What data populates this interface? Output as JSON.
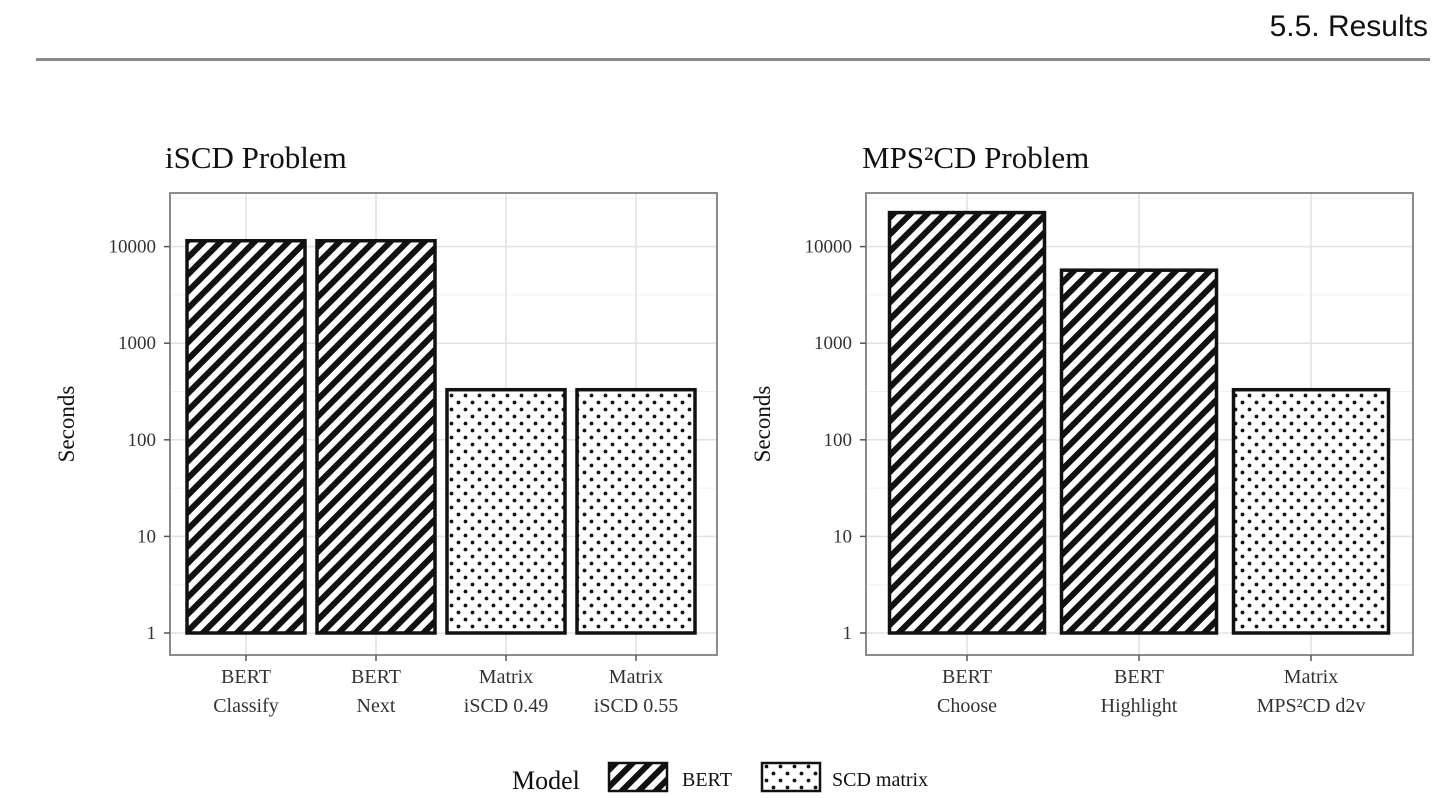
{
  "header": {
    "text": "5.5.  Results"
  },
  "chart_data": [
    {
      "type": "bar",
      "title": "iSCD Problem",
      "ylabel": "Seconds",
      "yscale": "log",
      "ylim": [
        1,
        20000
      ],
      "yticks": [
        1,
        10,
        100,
        1000,
        10000
      ],
      "ytick_labels": [
        "1",
        "10",
        "100",
        "1000",
        "10000"
      ],
      "grid": true,
      "categories": [
        {
          "line1": "BERT",
          "line2": "Classify"
        },
        {
          "line1": "BERT",
          "line2": "Next"
        },
        {
          "line1": "Matrix",
          "line2": "iSCD 0.49"
        },
        {
          "line1": "Matrix",
          "line2": "iSCD 0.55"
        }
      ],
      "values": [
        11500,
        11500,
        330,
        330
      ],
      "model": [
        "BERT",
        "BERT",
        "SCD matrix",
        "SCD matrix"
      ]
    },
    {
      "type": "bar",
      "title": "MPS²CD Problem",
      "ylabel": "Seconds",
      "yscale": "log",
      "ylim": [
        1,
        20000
      ],
      "yticks": [
        1,
        10,
        100,
        1000,
        10000
      ],
      "ytick_labels": [
        "1",
        "10",
        "100",
        "1000",
        "10000"
      ],
      "grid": true,
      "categories": [
        {
          "line1": "BERT",
          "line2": "Choose"
        },
        {
          "line1": "BERT",
          "line2": "Highlight"
        },
        {
          "line1": "Matrix",
          "line2": "MPS²CD d2v"
        }
      ],
      "values": [
        22500,
        5700,
        330
      ],
      "model": [
        "BERT",
        "BERT",
        "SCD matrix"
      ]
    }
  ],
  "legend": {
    "title": "Model",
    "placement": "bottom",
    "items": [
      {
        "label": "BERT",
        "pattern": "stripes"
      },
      {
        "label": "SCD matrix",
        "pattern": "dots"
      }
    ]
  },
  "colors": {
    "bar_stroke": "#111111",
    "grid": "#e3e3e3",
    "panel_border": "#8c8c8c"
  }
}
